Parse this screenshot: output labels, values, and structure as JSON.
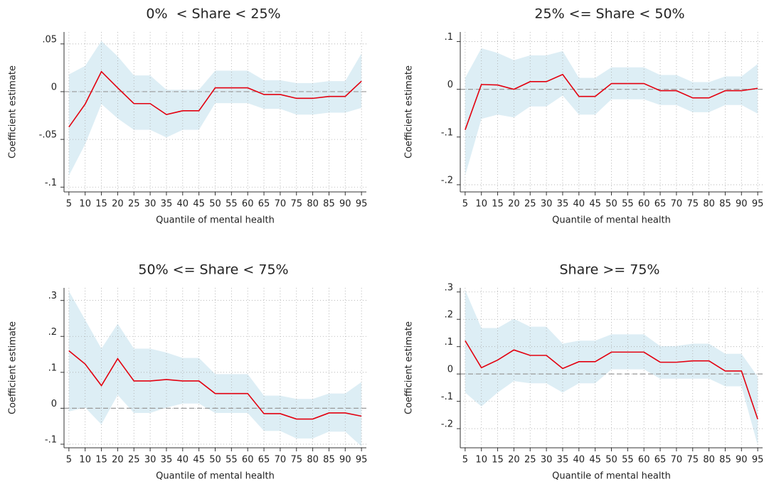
{
  "chart_data": [
    {
      "type": "line",
      "title": "0%  < Share < 25%",
      "x_label": "Quantile of mental health",
      "y_label": "Coefficient estimate",
      "x": [
        5,
        10,
        15,
        20,
        25,
        30,
        35,
        40,
        45,
        50,
        55,
        60,
        65,
        70,
        75,
        80,
        85,
        90,
        95
      ],
      "series": [
        {
          "color": "#e3000f",
          "values": [
            -0.037,
            -0.013,
            0.021,
            0.004,
            -0.0125,
            -0.0125,
            -0.024,
            -0.02,
            -0.02,
            0.004,
            0.004,
            0.004,
            -0.003,
            -0.003,
            -0.007,
            -0.007,
            -0.005,
            -0.005,
            0.011
          ]
        }
      ],
      "band": {
        "color": "#ddeef5",
        "upper": [
          0.018,
          0.027,
          0.053,
          0.037,
          0.017,
          0.017,
          0.002,
          0.002,
          0.002,
          0.022,
          0.022,
          0.022,
          0.012,
          0.012,
          0.009,
          0.009,
          0.011,
          0.011,
          0.04
        ],
        "lower": [
          -0.088,
          -0.055,
          -0.013,
          -0.028,
          -0.04,
          -0.04,
          -0.048,
          -0.04,
          -0.04,
          -0.012,
          -0.012,
          -0.012,
          -0.018,
          -0.018,
          -0.024,
          -0.024,
          -0.022,
          -0.022,
          -0.017
        ]
      },
      "reference_line": 0,
      "xlim": [
        3.5,
        96.5
      ],
      "xticks": [
        5,
        10,
        15,
        20,
        25,
        30,
        35,
        40,
        45,
        50,
        55,
        60,
        65,
        70,
        75,
        80,
        85,
        90,
        95
      ],
      "ylim": [
        -0.105,
        0.0625
      ],
      "yticks": [
        {
          "value": 0.05,
          "label": ".05"
        },
        0,
        {
          "value": -0.05,
          "label": "-.05"
        },
        {
          "value": -0.1,
          "label": "-.1"
        }
      ],
      "grid": true
    },
    {
      "type": "line",
      "title": "25% <= Share < 50%",
      "x_label": "Quantile of mental health",
      "y_label": "Coefficient estimate",
      "x": [
        5,
        10,
        15,
        20,
        25,
        30,
        35,
        40,
        45,
        50,
        55,
        60,
        65,
        70,
        75,
        80,
        85,
        90,
        95
      ],
      "series": [
        {
          "color": "#e3000f",
          "values": [
            -0.085,
            0.01,
            0.009,
            0.0,
            0.016,
            0.016,
            0.031,
            -0.015,
            -0.015,
            0.012,
            0.012,
            0.012,
            -0.003,
            -0.003,
            -0.018,
            -0.018,
            -0.003,
            -0.003,
            0.002
          ]
        }
      ],
      "band": {
        "color": "#ddeef5",
        "upper": [
          0.024,
          0.086,
          0.076,
          0.061,
          0.071,
          0.071,
          0.08,
          0.024,
          0.024,
          0.046,
          0.046,
          0.046,
          0.03,
          0.03,
          0.015,
          0.015,
          0.027,
          0.027,
          0.053
        ],
        "lower": [
          -0.181,
          -0.062,
          -0.053,
          -0.059,
          -0.036,
          -0.036,
          -0.013,
          -0.053,
          -0.053,
          -0.021,
          -0.021,
          -0.021,
          -0.033,
          -0.033,
          -0.048,
          -0.048,
          -0.033,
          -0.033,
          -0.051
        ]
      },
      "reference_line": 0,
      "xlim": [
        3.5,
        96.5
      ],
      "xticks": [
        5,
        10,
        15,
        20,
        25,
        30,
        35,
        40,
        45,
        50,
        55,
        60,
        65,
        70,
        75,
        80,
        85,
        90,
        95
      ],
      "ylim": [
        -0.215,
        0.12
      ],
      "yticks": [
        {
          "value": 0.1,
          "label": ".1"
        },
        0,
        {
          "value": -0.1,
          "label": "-.1"
        },
        {
          "value": -0.2,
          "label": "-.2"
        }
      ],
      "grid": true
    },
    {
      "type": "line",
      "title": "50% <= Share < 75%",
      "x_label": "Quantile of mental health",
      "y_label": "Coefficient estimate",
      "x": [
        5,
        10,
        15,
        20,
        25,
        30,
        35,
        40,
        45,
        50,
        55,
        60,
        65,
        70,
        75,
        80,
        85,
        90,
        95
      ],
      "series": [
        {
          "color": "#e3000f",
          "values": [
            0.16,
            0.123,
            0.063,
            0.138,
            0.076,
            0.076,
            0.08,
            0.076,
            0.076,
            0.041,
            0.041,
            0.041,
            -0.015,
            -0.015,
            -0.03,
            -0.03,
            -0.013,
            -0.013,
            -0.022
          ]
        }
      ],
      "band": {
        "color": "#ddeef5",
        "upper": [
          0.326,
          0.246,
          0.166,
          0.235,
          0.166,
          0.166,
          0.155,
          0.14,
          0.14,
          0.095,
          0.095,
          0.095,
          0.035,
          0.035,
          0.026,
          0.026,
          0.041,
          0.041,
          0.073
        ],
        "lower": [
          -0.009,
          0.002,
          -0.045,
          0.037,
          -0.013,
          -0.013,
          0.002,
          0.013,
          0.013,
          -0.013,
          -0.013,
          -0.013,
          -0.063,
          -0.063,
          -0.084,
          -0.084,
          -0.065,
          -0.065,
          -0.106
        ]
      },
      "reference_line": 0,
      "xlim": [
        3.5,
        96.5
      ],
      "xticks": [
        5,
        10,
        15,
        20,
        25,
        30,
        35,
        40,
        45,
        50,
        55,
        60,
        65,
        70,
        75,
        80,
        85,
        90,
        95
      ],
      "ylim": [
        -0.11,
        0.335
      ],
      "yticks": [
        {
          "value": 0.3,
          "label": ".3"
        },
        {
          "value": 0.2,
          "label": ".2"
        },
        {
          "value": 0.1,
          "label": ".1"
        },
        0,
        {
          "value": -0.1,
          "label": "-.1"
        }
      ],
      "grid": true
    },
    {
      "type": "line",
      "title": "Share >= 75%",
      "x_label": "Quantile of mental health",
      "y_label": "Coefficient estimate",
      "x": [
        5,
        10,
        15,
        20,
        25,
        30,
        35,
        40,
        45,
        50,
        55,
        60,
        65,
        70,
        75,
        80,
        85,
        90,
        95
      ],
      "series": [
        {
          "color": "#e3000f",
          "values": [
            0.122,
            0.023,
            0.051,
            0.088,
            0.068,
            0.068,
            0.02,
            0.045,
            0.045,
            0.08,
            0.08,
            0.08,
            0.043,
            0.043,
            0.048,
            0.048,
            0.011,
            0.011,
            -0.165
          ]
        }
      ],
      "band": {
        "color": "#ddeef5",
        "upper": [
          0.307,
          0.168,
          0.168,
          0.202,
          0.173,
          0.173,
          0.111,
          0.122,
          0.122,
          0.145,
          0.145,
          0.145,
          0.102,
          0.102,
          0.111,
          0.111,
          0.074,
          0.074,
          -0.01
        ],
        "lower": [
          -0.068,
          -0.119,
          -0.068,
          -0.026,
          -0.034,
          -0.034,
          -0.068,
          -0.034,
          -0.034,
          0.017,
          0.017,
          0.017,
          -0.017,
          -0.017,
          -0.017,
          -0.017,
          -0.045,
          -0.045,
          -0.261
        ]
      },
      "reference_line": 0,
      "xlim": [
        3.5,
        96.5
      ],
      "xticks": [
        5,
        10,
        15,
        20,
        25,
        30,
        35,
        40,
        45,
        50,
        55,
        60,
        65,
        70,
        75,
        80,
        85,
        90,
        95
      ],
      "ylim": [
        -0.27,
        0.315
      ],
      "yticks": [
        {
          "value": 0.3,
          "label": ".3"
        },
        {
          "value": 0.2,
          "label": ".2"
        },
        {
          "value": 0.1,
          "label": ".1"
        },
        0,
        {
          "value": -0.1,
          "label": "-.1"
        },
        {
          "value": -0.2,
          "label": "-.2"
        }
      ],
      "grid": true
    }
  ]
}
